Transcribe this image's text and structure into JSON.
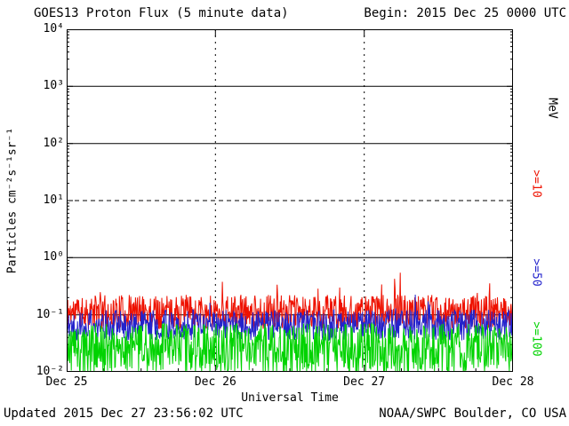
{
  "header": {
    "title": "GOES13 Proton Flux (5 minute data)",
    "begin": "Begin: 2015 Dec 25 0000 UTC"
  },
  "footer": {
    "updated": "Updated 2015 Dec 27 23:56:02 UTC",
    "credit": "NOAA/SWPC Boulder, CO USA"
  },
  "chart_data": {
    "type": "line",
    "title": "GOES13 Proton Flux (5 minute data)",
    "xlabel": "Universal Time",
    "ylabel": "Particles cm⁻²s⁻¹sr⁻¹",
    "x_start": "2015 Dec 25 0000 UTC",
    "x_days": 3,
    "x_tick_labels": [
      "Dec 25",
      "Dec 26",
      "Dec 27",
      "Dec 28"
    ],
    "y_scale": "log10",
    "y_log_range": [
      -2,
      4
    ],
    "y_tick_labels": [
      "10⁴",
      "10³",
      "10²",
      "10¹",
      "10⁰",
      "10⁻¹",
      "10⁻²"
    ],
    "grid": {
      "solid_decades": [
        3,
        2,
        0,
        -1
      ],
      "dashed_decades": [
        1
      ],
      "vertical_dotted_days": [
        1,
        2
      ]
    },
    "right_axis_unit": "MeV",
    "legend": [
      {
        "label": ">=10",
        "color": "#ee1100"
      },
      {
        "label": ">=50",
        "color": "#2323cc"
      },
      {
        "label": ">=100",
        "color": "#00d300"
      }
    ],
    "series": [
      {
        "name": ">=10 MeV",
        "color": "#ee1100",
        "points": 864,
        "median_flux": 0.11,
        "flux_range": [
          0.05,
          0.5
        ],
        "base_log10": -0.95,
        "noise_log10": 0.3,
        "spike_prob": 0.05,
        "spike_max_log10": 0.45,
        "floor_log10": -2,
        "seed": 11
      },
      {
        "name": ">=50 MeV",
        "color": "#2323cc",
        "points": 864,
        "median_flux": 0.066,
        "flux_range": [
          0.03,
          0.2
        ],
        "base_log10": -1.18,
        "noise_log10": 0.27,
        "spike_prob": 0.02,
        "spike_max_log10": 0.35,
        "floor_log10": -2,
        "seed": 22
      },
      {
        "name": ">=100 MeV",
        "color": "#00d300",
        "points": 864,
        "median_flux": 0.025,
        "flux_range": [
          0.01,
          0.06
        ],
        "base_log10": -1.6,
        "noise_log10": 0.45,
        "spike_prob": 0.0,
        "spike_max_log10": 0,
        "floor_log10": -2,
        "seed": 33
      }
    ]
  }
}
